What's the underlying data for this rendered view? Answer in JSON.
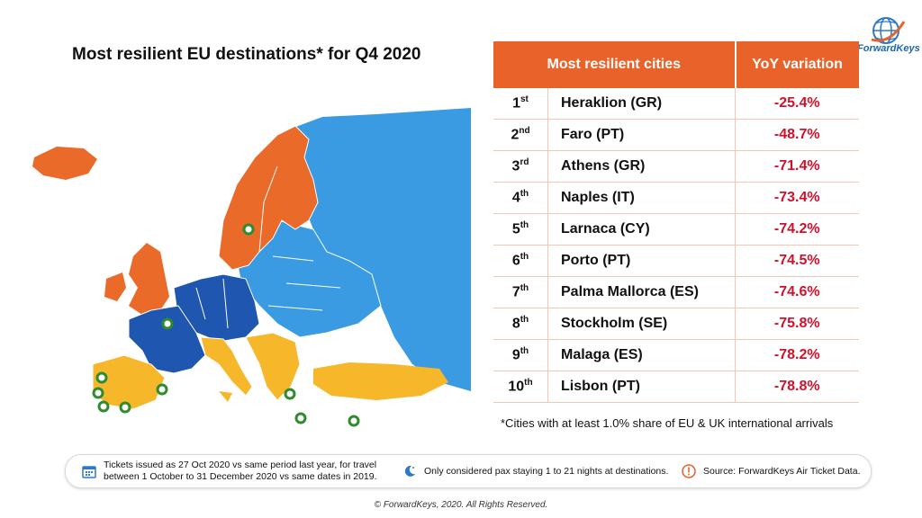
{
  "title": "Most resilient EU destinations* for Q4 2020",
  "brand": {
    "name": "ForwardKeys"
  },
  "table": {
    "headers": [
      "Most resilient cities",
      "YoY variation"
    ],
    "rows": [
      {
        "rank": "1",
        "suffix": "st",
        "city": "Heraklion (GR)",
        "variation": "-25.4%"
      },
      {
        "rank": "2",
        "suffix": "nd",
        "city": "Faro (PT)",
        "variation": "-48.7%"
      },
      {
        "rank": "3",
        "suffix": "rd",
        "city": "Athens (GR)",
        "variation": "-71.4%"
      },
      {
        "rank": "4",
        "suffix": "th",
        "city": "Naples (IT)",
        "variation": "-73.4%"
      },
      {
        "rank": "5",
        "suffix": "th",
        "city": "Larnaca (CY)",
        "variation": "-74.2%"
      },
      {
        "rank": "6",
        "suffix": "th",
        "city": "Porto (PT)",
        "variation": "-74.5%"
      },
      {
        "rank": "7",
        "suffix": "th",
        "city": "Palma Mallorca (ES)",
        "variation": "-74.6%"
      },
      {
        "rank": "8",
        "suffix": "th",
        "city": "Stockholm (SE)",
        "variation": "-75.8%"
      },
      {
        "rank": "9",
        "suffix": "th",
        "city": "Malaga (ES)",
        "variation": "-78.2%"
      },
      {
        "rank": "10",
        "suffix": "th",
        "city": "Lisbon (PT)",
        "variation": "-78.8%"
      }
    ]
  },
  "footnote": "*Cities with at least 1.0% share of EU & UK international arrivals",
  "footer": {
    "tickets_line1": "Tickets issued as 27 Oct 2020 vs same period last year, for travel",
    "tickets_line2": "between 1 October to 31 December 2020 vs same dates in 2019.",
    "pax": "Only considered pax staying 1 to 21 nights at destinations.",
    "source": "Source: ForwardKeys Air Ticket Data.",
    "icons": [
      "calendar-icon",
      "moon-icon",
      "exclamation-icon"
    ]
  },
  "copyright": "© ForwardKeys, 2020. All Rights Reserved.",
  "colors": {
    "accent": "#e8622a",
    "negative": "#d0112b",
    "map_orange": "#ea6a2a",
    "map_dark_blue": "#1f56b0",
    "map_light_blue": "#3b9be2",
    "map_yellow": "#f6b72a",
    "marker": "#2e8b2e"
  },
  "map": {
    "legend_groups": [
      "orange",
      "dark-blue",
      "light-blue",
      "yellow"
    ],
    "marked_cities": [
      "Stockholm",
      "Naples",
      "Porto",
      "Lisbon",
      "Faro",
      "Malaga",
      "Palma Mallorca",
      "Athens",
      "Heraklion",
      "Larnaca"
    ]
  }
}
